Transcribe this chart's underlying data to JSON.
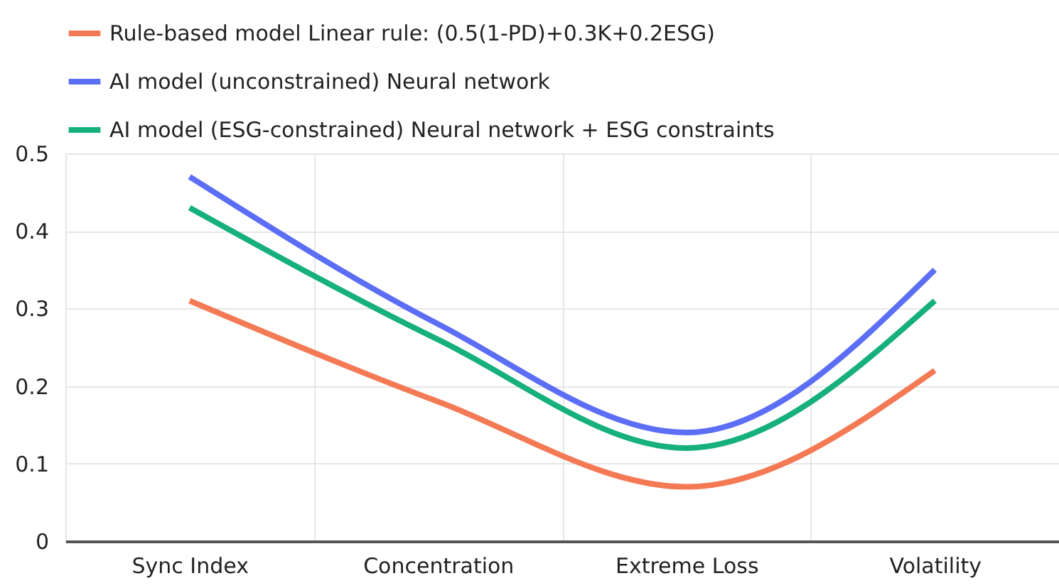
{
  "chart_data": {
    "type": "line",
    "categories": [
      "Sync Index",
      "Concentration",
      "Extreme Loss",
      "Volatility"
    ],
    "series": [
      {
        "name": "Rule-based model Linear rule: (0.5(1-PD)+0.3K+0.2ESG)",
        "color": "#f47a55",
        "values": [
          0.31,
          0.18,
          0.07,
          0.22
        ]
      },
      {
        "name": "AI model (unconstrained) Neural network",
        "color": "#5b6ef5",
        "values": [
          0.47,
          0.28,
          0.14,
          0.35
        ]
      },
      {
        "name": "AI model (ESG-constrained) Neural network + ESG constraints",
        "color": "#16b07a",
        "values": [
          0.43,
          0.26,
          0.12,
          0.31
        ]
      }
    ],
    "ylim": [
      0,
      0.5
    ],
    "yticks": [
      0,
      0.1,
      0.2,
      0.3,
      0.4,
      0.5
    ],
    "grid": true,
    "legend": "top",
    "marker": "none",
    "line_style": "solid"
  }
}
